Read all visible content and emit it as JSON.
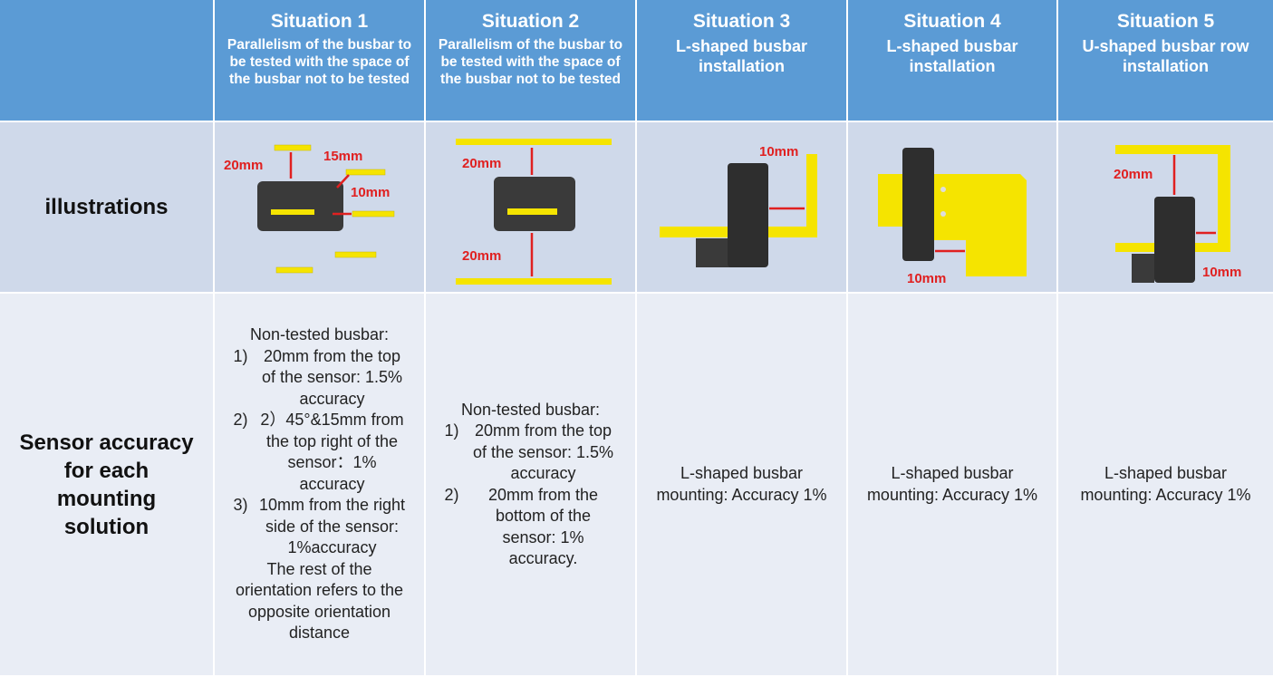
{
  "table": {
    "columns": [
      {
        "title": "Situation 1",
        "subtitle": "Parallelism of the busbar to be tested with the space of the busbar not to be tested"
      },
      {
        "title": "Situation 2",
        "subtitle": "Parallelism of the busbar to be tested with the space of the busbar not to be tested"
      },
      {
        "title": "Situation 3",
        "subtitle": "L-shaped busbar installation"
      },
      {
        "title": "Situation 4",
        "subtitle": "L-shaped busbar installation"
      },
      {
        "title": "Situation 5",
        "subtitle": "U-shaped busbar row installation"
      }
    ],
    "rows": [
      {
        "label": "illustrations"
      },
      {
        "label": "Sensor accuracy for each mounting solution"
      }
    ],
    "illustration_labels": [
      [
        "20mm",
        "15mm",
        "10mm"
      ],
      [
        "20mm",
        "20mm"
      ],
      [
        "10mm"
      ],
      [
        "10mm"
      ],
      [
        "20mm",
        "10mm"
      ]
    ],
    "accuracy": [
      {
        "intro": "Non-tested busbar:",
        "items": [
          {
            "num": "1)",
            "text": "20mm from the top of the sensor: 1.5% accuracy"
          },
          {
            "num": "2)",
            "text": "2）45°&15mm from the top right of the sensor：1% accuracy"
          },
          {
            "num": "3)",
            "text": "10mm from the right side of the sensor: 1%accuracy"
          }
        ],
        "outro": "The rest of the orientation refers to the opposite orientation distance"
      },
      {
        "intro": "Non-tested busbar:",
        "items": [
          {
            "num": "1)",
            "text": "20mm from the top of the sensor: 1.5% accuracy"
          },
          {
            "num": "2)",
            "text": "20mm from the bottom of the sensor: 1% accuracy."
          }
        ]
      },
      {
        "intro": "L-shaped busbar mounting: Accuracy 1%"
      },
      {
        "intro": "L-shaped busbar mounting: Accuracy 1%"
      },
      {
        "intro": "L-shaped busbar mounting: Accuracy 1%"
      }
    ]
  }
}
